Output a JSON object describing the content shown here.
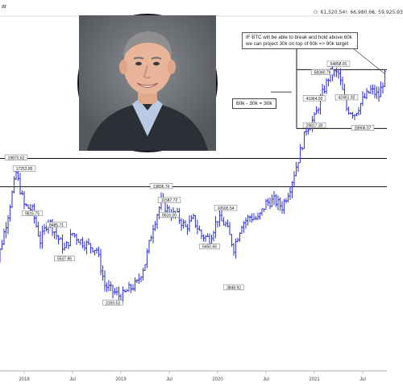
{
  "header": {
    "title_fragment": "ar",
    "stats": [
      {
        "key": "O",
        "value": "61,520.54",
        "x": 389
      },
      {
        "key": "H",
        "value": "66,980.66",
        "x": 426
      },
      {
        "key": "L",
        "value": "59,925.93",
        "x": 462
      }
    ]
  },
  "annotations": {
    "note": "IF BTC will be able to break and hold above 60k we can project 30k on top of 60k => 90k target",
    "calc": "60k - 30k = 30k"
  },
  "colors": {
    "candle": "#3b3fd6",
    "line": "#111111",
    "axis_text": "#444444"
  },
  "chart_data": {
    "type": "ohlc",
    "title": "",
    "xlabel": "",
    "ylabel": "",
    "scale": "log",
    "ylim": [
      1500,
      120000
    ],
    "time_range": [
      "2017-09",
      "2021-12"
    ],
    "x_ticks": [
      "2018",
      "Jul",
      "2019",
      "Jul",
      "2020",
      "Jul",
      "2021",
      "Jul"
    ],
    "horizontal_levels": [
      19870,
      13880,
      61000,
      29000
    ],
    "price_labels": [
      {
        "text": "19870.62",
        "date": "2017-12"
      },
      {
        "text": "17252.85",
        "date": "2018-01"
      },
      {
        "text": "9815.75",
        "date": "2018-02"
      },
      {
        "text": "8485.71",
        "date": "2018-05"
      },
      {
        "text": "5537.86",
        "date": "2018-06"
      },
      {
        "text": "3169.53",
        "date": "2018-12"
      },
      {
        "text": "13836.76",
        "date": "2019-06"
      },
      {
        "text": "11587.72",
        "date": "2019-07"
      },
      {
        "text": "9616.00",
        "date": "2019-07"
      },
      {
        "text": "10500.54",
        "date": "2020-02"
      },
      {
        "text": "6450.66",
        "date": "2019-12"
      },
      {
        "text": "3848.92",
        "date": "2020-03"
      },
      {
        "text": "41964.93",
        "date": "2021-01"
      },
      {
        "text": "58340.79",
        "date": "2021-02"
      },
      {
        "text": "64858.91",
        "date": "2021-04"
      },
      {
        "text": "42461.92",
        "date": "2021-05"
      },
      {
        "text": "29817.30",
        "date": "2021-01"
      },
      {
        "text": "28906.07",
        "date": "2021-07"
      }
    ],
    "series": [
      {
        "weekly_close_approx": [
          [
            "2017-09",
            4200
          ],
          [
            "2017-10",
            6200
          ],
          [
            "2017-11",
            9800
          ],
          [
            "2017-12",
            16500
          ],
          [
            "2018-01",
            11000
          ],
          [
            "2018-02",
            10300
          ],
          [
            "2018-03",
            7000
          ],
          [
            "2018-04",
            9200
          ],
          [
            "2018-05",
            7500
          ],
          [
            "2018-06",
            6300
          ],
          [
            "2018-07",
            7700
          ],
          [
            "2018-08",
            7000
          ],
          [
            "2018-09",
            6600
          ],
          [
            "2018-10",
            6300
          ],
          [
            "2018-11",
            4000
          ],
          [
            "2018-12",
            3700
          ],
          [
            "2019-01",
            3450
          ],
          [
            "2019-02",
            3800
          ],
          [
            "2019-03",
            4100
          ],
          [
            "2019-04",
            5300
          ],
          [
            "2019-05",
            8500
          ],
          [
            "2019-06",
            11500
          ],
          [
            "2019-07",
            10000
          ],
          [
            "2019-08",
            9600
          ],
          [
            "2019-09",
            8300
          ],
          [
            "2019-10",
            9200
          ],
          [
            "2019-11",
            7500
          ],
          [
            "2019-12",
            7200
          ],
          [
            "2020-01",
            9300
          ],
          [
            "2020-02",
            8600
          ],
          [
            "2020-03",
            6400
          ],
          [
            "2020-04",
            8700
          ],
          [
            "2020-05",
            9500
          ],
          [
            "2020-06",
            9200
          ],
          [
            "2020-07",
            11300
          ],
          [
            "2020-08",
            11700
          ],
          [
            "2020-09",
            10800
          ],
          [
            "2020-10",
            13800
          ],
          [
            "2020-11",
            19700
          ],
          [
            "2020-12",
            28900
          ],
          [
            "2021-01",
            33000
          ],
          [
            "2021-02",
            45000
          ],
          [
            "2021-03",
            58800
          ],
          [
            "2021-04",
            57700
          ],
          [
            "2021-05",
            37300
          ],
          [
            "2021-06",
            35000
          ],
          [
            "2021-07",
            41500
          ],
          [
            "2021-08",
            47100
          ],
          [
            "2021-09",
            43800
          ],
          [
            "2021-10",
            61300
          ]
        ]
      }
    ]
  }
}
